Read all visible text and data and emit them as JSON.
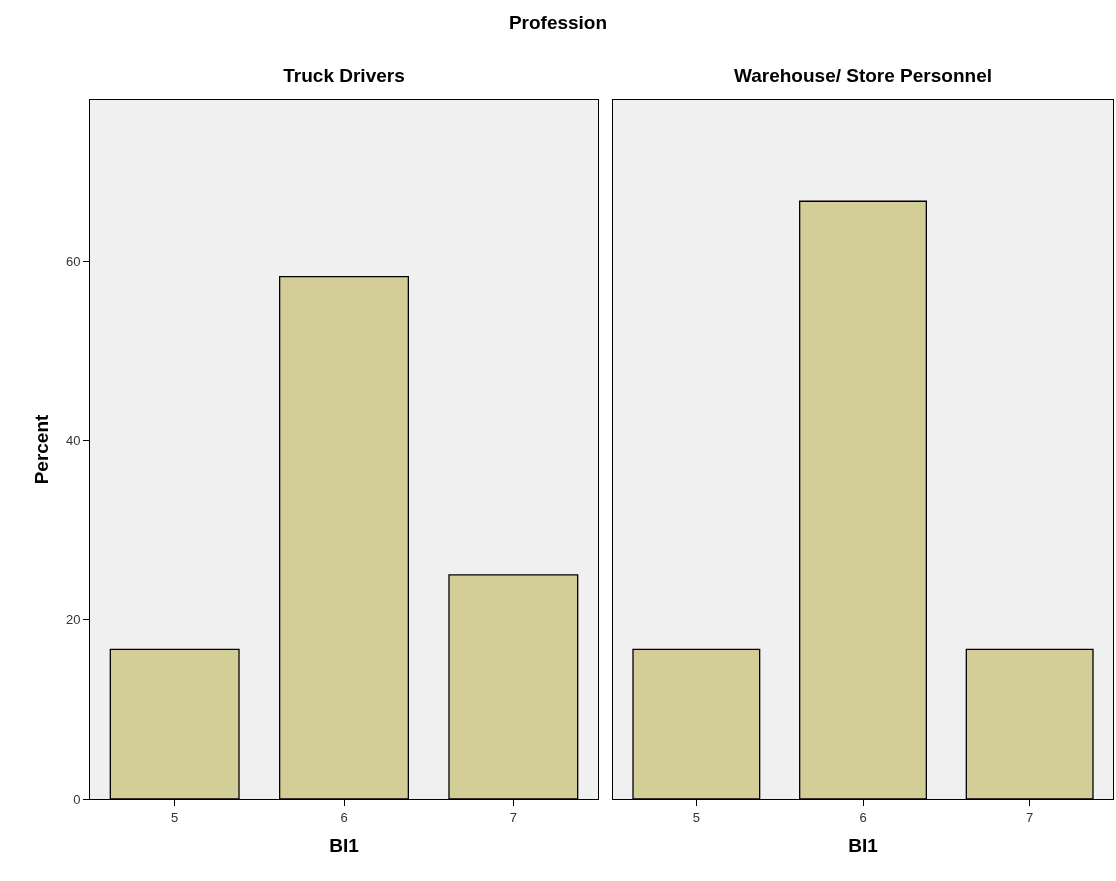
{
  "chart_data": [
    {
      "type": "bar",
      "title": "Truck Drivers",
      "xlabel": "BI1",
      "ylabel": "Percent",
      "annotations": [
        "Profession"
      ],
      "categories": [
        "5",
        "6",
        "7"
      ],
      "values": [
        16.7,
        58.3,
        25
      ],
      "color": "#d3ce97",
      "ylim": [
        0,
        78
      ],
      "yticks": [
        0,
        20,
        40,
        60
      ],
      "grid": false
    },
    {
      "type": "bar",
      "title": "Warehouse/ Store Personnel",
      "xlabel": "BI1",
      "categories": [
        "5",
        "6",
        "7"
      ],
      "values": [
        16.7,
        66.7,
        16.7
      ],
      "color": "#d3ce97",
      "ylim": [
        0,
        78
      ],
      "yticks": [
        0,
        20,
        40,
        60
      ],
      "grid": false,
      "tick_labels": "x"
    }
  ]
}
